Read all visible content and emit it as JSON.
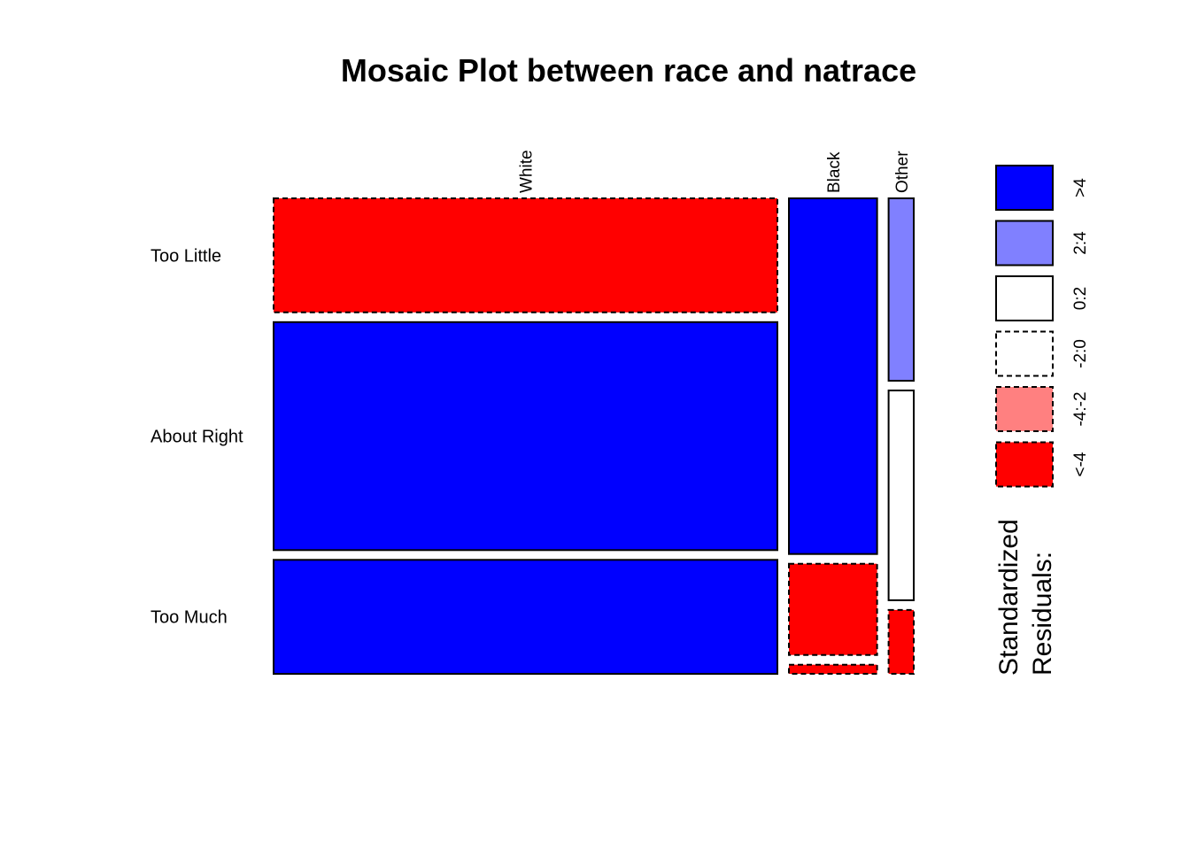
{
  "chart_data": {
    "type": "mosaic",
    "title": "Mosaic Plot between race and natrace",
    "columns": [
      "White",
      "Black",
      "Other"
    ],
    "rows": [
      "Too Little",
      "About Right",
      "Too Much"
    ],
    "column_proportions": [
      0.8,
      0.14,
      0.04
    ],
    "cells": [
      {
        "column": "White",
        "row_proportions": [
          0.25,
          0.5,
          0.25
        ],
        "residual_class": [
          "<-4",
          ">4",
          ">4"
        ]
      },
      {
        "column": "Black",
        "row_proportions": [
          0.78,
          0.2,
          0.02
        ],
        "residual_class": [
          ">4",
          "<-4",
          "<-4"
        ]
      },
      {
        "column": "Other",
        "row_proportions": [
          0.4,
          0.46,
          0.14
        ],
        "residual_class": [
          "2:4",
          "0:2",
          "<-4"
        ]
      }
    ],
    "legend": {
      "title_lines": [
        "Standardized",
        "Residuals:"
      ],
      "placement": "right",
      "entries": [
        {
          "label": ">4",
          "color": "#0000FF",
          "dashed": false
        },
        {
          "label": "2:4",
          "color": "#8080FF",
          "dashed": false
        },
        {
          "label": "0:2",
          "color": "#FFFFFF",
          "dashed": false
        },
        {
          "label": "-2:0",
          "color": "#FFFFFF",
          "dashed": true
        },
        {
          "label": "-4:-2",
          "color": "#FF8080",
          "dashed": true
        },
        {
          "label": "<-4",
          "color": "#FF0000",
          "dashed": true
        }
      ]
    }
  }
}
